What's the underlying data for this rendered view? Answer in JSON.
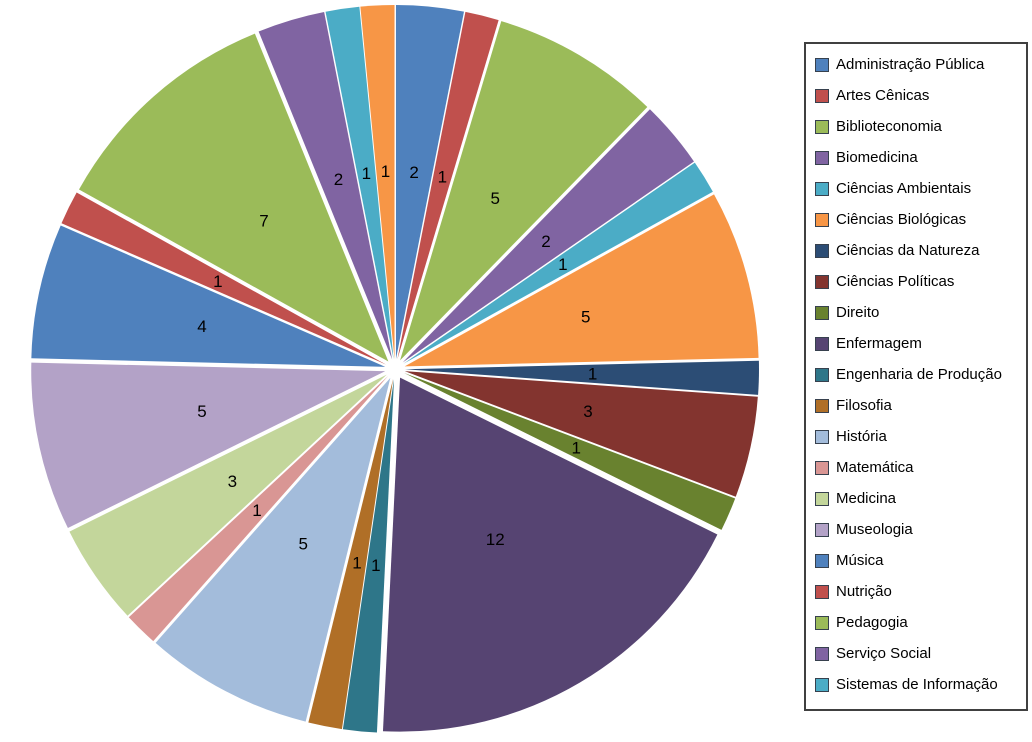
{
  "page": {
    "background_color": "#FFFFFF"
  },
  "chart_data": {
    "type": "pie",
    "title": "",
    "start_angle_deg": 0,
    "direction": "clockwise",
    "exploded": true,
    "data_labels": "value",
    "values_total": 65,
    "legend_position": "right",
    "slices": [
      {
        "label": "Administração Pública",
        "value": 2,
        "color": "#4F81BD"
      },
      {
        "label": "Artes Cênicas",
        "value": 1,
        "color": "#C0504D"
      },
      {
        "label": "Biblioteconomia",
        "value": 5,
        "color": "#9BBB59"
      },
      {
        "label": "Biomedicina",
        "value": 2,
        "color": "#8064A2"
      },
      {
        "label": "Ciências Ambientais",
        "value": 1,
        "color": "#4BACC6"
      },
      {
        "label": "Ciências Biológicas",
        "value": 5,
        "color": "#F79646"
      },
      {
        "label": "Ciências da Natureza",
        "value": 1,
        "color": "#2C4D75"
      },
      {
        "label": "Ciências Políticas",
        "value": 3,
        "color": "#83342F"
      },
      {
        "label": "Direito",
        "value": 1,
        "color": "#69822F"
      },
      {
        "label": "Enfermagem",
        "value": 12,
        "color": "#564472"
      },
      {
        "label": "Engenharia de Produção",
        "value": 1,
        "color": "#2E7689"
      },
      {
        "label": "Filosofia",
        "value": 1,
        "color": "#B06F27"
      },
      {
        "label": "História",
        "value": 5,
        "color": "#A3BCDB"
      },
      {
        "label": "Matemática",
        "value": 1,
        "color": "#D99694"
      },
      {
        "label": "Medicina",
        "value": 3,
        "color": "#C3D69B"
      },
      {
        "label": "Museologia",
        "value": 5,
        "color": "#B3A2C7"
      },
      {
        "label": "Música",
        "value": 4,
        "color": "#4F81BD"
      },
      {
        "label": "Nutrição",
        "value": 1,
        "color": "#C0504D"
      },
      {
        "label": "Pedagogia",
        "value": 7,
        "color": "#9BBB59"
      },
      {
        "label": "Serviço Social",
        "value": 2,
        "color": "#8064A2"
      },
      {
        "label": "Sistemas de Informação",
        "value": 1,
        "color": "#4BACC6"
      },
      {
        "label": "",
        "value": 1,
        "color": "#F79646",
        "in_legend": false
      }
    ]
  }
}
